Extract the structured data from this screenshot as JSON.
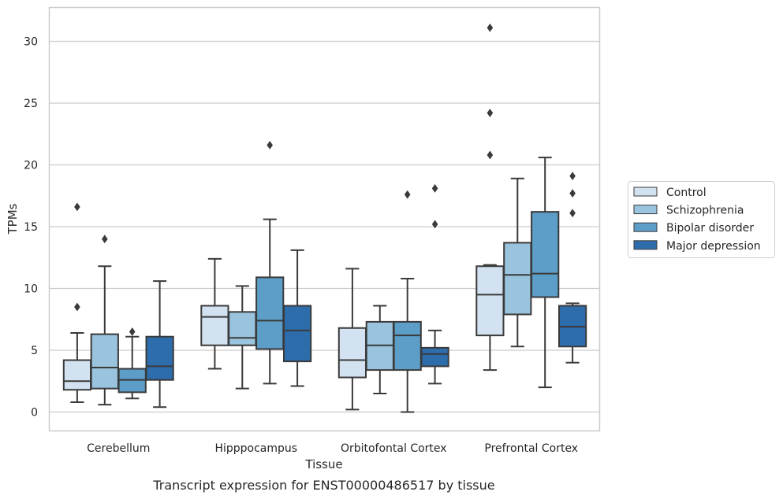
{
  "caption": "Transcript expression for ENST00000486517 by tissue",
  "chart_data": {
    "type": "boxplot",
    "title": "",
    "xlabel": "Tissue",
    "ylabel": "TPMs",
    "ylim": [
      -1.5,
      32.6
    ],
    "yticks": [
      0,
      5,
      10,
      15,
      20,
      25,
      30
    ],
    "grid": "horizontal",
    "legend_position": "right",
    "categories": [
      "Cerebellum",
      "Hipppocampus",
      "Orbitofontal Cortex",
      "Prefrontal Cortex"
    ],
    "series": [
      {
        "name": "Control",
        "color": "#d3e2f0",
        "boxes": [
          {
            "whislo": 0.8,
            "q1": 1.8,
            "med": 2.5,
            "q3": 4.2,
            "whishi": 6.4,
            "fliers": [
              8.5,
              16.6
            ]
          },
          {
            "whislo": 3.5,
            "q1": 5.4,
            "med": 7.7,
            "q3": 8.6,
            "whishi": 12.4,
            "fliers": []
          },
          {
            "whislo": 0.2,
            "q1": 2.8,
            "med": 4.2,
            "q3": 6.8,
            "whishi": 11.6,
            "fliers": []
          },
          {
            "whislo": 3.4,
            "q1": 6.2,
            "med": 9.5,
            "q3": 11.8,
            "whishi": 11.9,
            "fliers": [
              20.8,
              24.2,
              31.1
            ]
          }
        ]
      },
      {
        "name": "Schizophrenia",
        "color": "#9ac3dd",
        "boxes": [
          {
            "whislo": 0.6,
            "q1": 1.9,
            "med": 3.6,
            "q3": 6.3,
            "whishi": 11.8,
            "fliers": [
              14.0
            ]
          },
          {
            "whislo": 1.9,
            "q1": 5.4,
            "med": 6.0,
            "q3": 8.1,
            "whishi": 10.2,
            "fliers": []
          },
          {
            "whislo": 1.5,
            "q1": 3.4,
            "med": 5.4,
            "q3": 7.3,
            "whishi": 8.6,
            "fliers": []
          },
          {
            "whislo": 5.3,
            "q1": 7.9,
            "med": 11.1,
            "q3": 13.7,
            "whishi": 18.9,
            "fliers": []
          }
        ]
      },
      {
        "name": "Bipolar disorder",
        "color": "#5d9ec8",
        "boxes": [
          {
            "whislo": 1.1,
            "q1": 1.6,
            "med": 2.6,
            "q3": 3.5,
            "whishi": 6.1,
            "fliers": [
              6.5
            ]
          },
          {
            "whislo": 2.3,
            "q1": 5.1,
            "med": 7.4,
            "q3": 10.9,
            "whishi": 15.6,
            "fliers": [
              21.6
            ]
          },
          {
            "whislo": 0.0,
            "q1": 3.4,
            "med": 6.2,
            "q3": 7.3,
            "whishi": 10.8,
            "fliers": [
              17.6
            ]
          },
          {
            "whislo": 2.0,
            "q1": 9.3,
            "med": 11.2,
            "q3": 16.2,
            "whishi": 20.6,
            "fliers": []
          }
        ]
      },
      {
        "name": "Major depression",
        "color": "#2d6dac",
        "boxes": [
          {
            "whislo": 0.4,
            "q1": 2.6,
            "med": 3.7,
            "q3": 6.1,
            "whishi": 10.6,
            "fliers": []
          },
          {
            "whislo": 2.1,
            "q1": 4.1,
            "med": 6.6,
            "q3": 8.6,
            "whishi": 13.1,
            "fliers": []
          },
          {
            "whislo": 2.3,
            "q1": 3.7,
            "med": 4.7,
            "q3": 5.2,
            "whishi": 6.6,
            "fliers": [
              15.2,
              18.1
            ]
          },
          {
            "whislo": 4.0,
            "q1": 5.3,
            "med": 6.9,
            "q3": 8.6,
            "whishi": 8.8,
            "fliers": [
              16.1,
              17.7,
              19.1
            ]
          }
        ]
      }
    ]
  }
}
